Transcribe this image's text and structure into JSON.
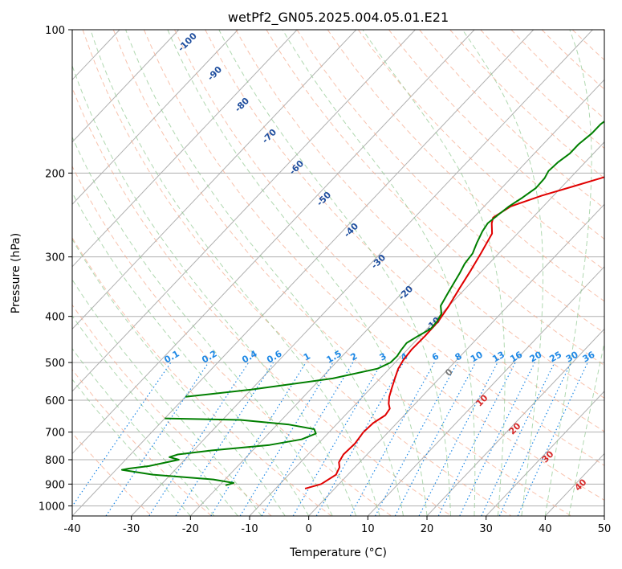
{
  "chart_data": {
    "type": "line",
    "title": "wetPf2_GN05.2025.004.05.01.E21",
    "xlabel": "Temperature (°C)",
    "ylabel": "Pressure (hPa)",
    "xlim": [
      -40,
      50
    ],
    "ylim": [
      1050,
      100
    ],
    "y_scale": "log",
    "grid": true,
    "x_ticks": [
      -40,
      -30,
      -20,
      -10,
      0,
      10,
      20,
      30,
      40,
      50
    ],
    "y_ticks": [
      100,
      200,
      300,
      400,
      500,
      600,
      700,
      800,
      900,
      1000
    ],
    "series": [
      {
        "color": "#e00000",
        "points": [
          [
            -5,
            920
          ],
          [
            -3,
            900
          ],
          [
            -2,
            860
          ],
          [
            -2.6,
            830
          ],
          [
            -3.5,
            810
          ],
          [
            -4,
            780
          ],
          [
            -3.8,
            740
          ],
          [
            -4.2,
            700
          ],
          [
            -4,
            670
          ],
          [
            -3.2,
            645
          ],
          [
            -3.5,
            625
          ],
          [
            -4.5,
            610
          ],
          [
            -5.5,
            590
          ],
          [
            -6.5,
            565
          ],
          [
            -7.5,
            540
          ],
          [
            -8.5,
            515
          ],
          [
            -9,
            495
          ],
          [
            -9.3,
            470
          ],
          [
            -9.2,
            440
          ],
          [
            -9.3,
            410
          ],
          [
            -10,
            380
          ],
          [
            -11,
            350
          ],
          [
            -12,
            320
          ],
          [
            -13,
            295
          ],
          [
            -14.3,
            268
          ],
          [
            -16,
            255
          ],
          [
            -16.7,
            248
          ],
          [
            -15.5,
            235
          ],
          [
            -12,
            223
          ],
          [
            -8,
            213
          ],
          [
            -4,
            203
          ],
          [
            -1,
            192
          ],
          [
            1.5,
            180
          ],
          [
            3,
            172
          ],
          [
            5,
            163
          ],
          [
            9,
            152
          ],
          [
            14,
            140
          ],
          [
            19,
            130
          ],
          [
            23,
            124
          ],
          [
            27,
            117
          ],
          [
            30,
            110
          ],
          [
            33,
            103
          ],
          [
            35,
            100
          ]
        ]
      },
      {
        "color": "#007f00",
        "points": [
          [
            -40,
            590
          ],
          [
            -30,
            570
          ],
          [
            -18,
            540
          ],
          [
            -12,
            515
          ],
          [
            -10.8,
            500
          ],
          [
            -10.7,
            485
          ],
          [
            -11,
            470
          ],
          [
            -11.2,
            455
          ],
          [
            -10.4,
            440
          ],
          [
            -9.4,
            425
          ],
          [
            -9.5,
            410
          ],
          [
            -10,
            395
          ],
          [
            -11.4,
            380
          ],
          [
            -12.3,
            355
          ],
          [
            -13.4,
            325
          ],
          [
            -14.1,
            310
          ],
          [
            -14.4,
            295
          ],
          [
            -15.4,
            280
          ],
          [
            -16.3,
            265
          ],
          [
            -16.7,
            255
          ],
          [
            -16.3,
            245
          ],
          [
            -15.8,
            235
          ],
          [
            -14.9,
            225
          ],
          [
            -14.2,
            215
          ],
          [
            -14.3,
            205
          ],
          [
            -14.8,
            198
          ],
          [
            -14.6,
            190
          ],
          [
            -14,
            182
          ],
          [
            -14,
            174
          ],
          [
            -13.5,
            165
          ],
          [
            -13.5,
            158
          ],
          [
            -12.8,
            150
          ],
          [
            -12.3,
            143
          ],
          [
            -11.8,
            136
          ],
          [
            -12,
            130
          ],
          [
            -11.7,
            123
          ],
          [
            -11.5,
            116
          ],
          [
            -11.3,
            110
          ],
          [
            -13,
            106
          ],
          [
            -15.8,
            104
          ],
          [
            -18,
            102
          ],
          [
            -16,
            100
          ]
        ]
      },
      {
        "color": "#007f00",
        "points": [
          [
            -40,
            655
          ],
          [
            -27,
            660
          ],
          [
            -18,
            675
          ],
          [
            -13,
            690
          ],
          [
            -12,
            705
          ],
          [
            -13.5,
            725
          ],
          [
            -18,
            745
          ],
          [
            -27,
            765
          ],
          [
            -32,
            780
          ],
          [
            -33,
            790
          ],
          [
            -31,
            800
          ],
          [
            -35,
            825
          ],
          [
            -38,
            835
          ],
          [
            -39,
            840
          ],
          [
            -33,
            860
          ],
          [
            -22,
            880
          ],
          [
            -18,
            895
          ],
          [
            -19,
            905
          ]
        ]
      }
    ],
    "isotherm_labels": [
      "-100",
      "-90",
      "-80",
      "-70",
      "-60",
      "-50",
      "-40",
      "-30",
      "-20",
      "-10"
    ],
    "mixing_ratio_labels": [
      "0.1",
      "0.2",
      "0.4",
      "0.6",
      "1",
      "1.5",
      "2",
      "3",
      "4",
      "6",
      "8",
      "10",
      "13",
      "16",
      "20",
      "25",
      "30",
      "36"
    ],
    "dry_adiabat_labels": [
      "0",
      "10",
      "20",
      "30",
      "40"
    ]
  }
}
